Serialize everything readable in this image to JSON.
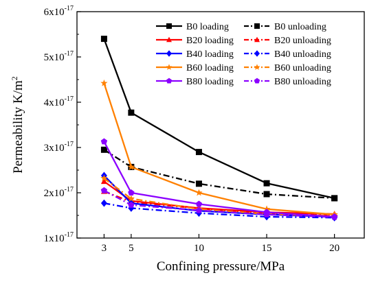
{
  "chart_data": {
    "type": "line",
    "xlabel": "Confining pressure/MPa",
    "ylabel": "Permeability K/m",
    "ylabel_superscript": "2",
    "x": [
      3,
      5,
      10,
      15,
      20
    ],
    "xticks": [
      "3",
      "5",
      "10",
      "15",
      "20"
    ],
    "xlim": [
      1.0,
      22.2
    ],
    "ylim": [
      1e-17,
      6e-17
    ],
    "yticks": [
      {
        "value": 1e-17,
        "mantissa": "1x10",
        "exp": "-17"
      },
      {
        "value": 2e-17,
        "mantissa": "2x10",
        "exp": "-17"
      },
      {
        "value": 3e-17,
        "mantissa": "3x10",
        "exp": "-17"
      },
      {
        "value": 4e-17,
        "mantissa": "4x10",
        "exp": "-17"
      },
      {
        "value": 5e-17,
        "mantissa": "5x10",
        "exp": "-17"
      },
      {
        "value": 6e-17,
        "mantissa": "6x10",
        "exp": "-17"
      }
    ],
    "grid": false,
    "legend_position": "top-right",
    "series": [
      {
        "name": "B0  loading",
        "color": "#000000",
        "dash": "solid",
        "marker": "square",
        "values": [
          5.4e-17,
          3.77e-17,
          2.9e-17,
          2.21e-17,
          1.88e-17
        ]
      },
      {
        "name": "B0  unloading",
        "color": "#000000",
        "dash": "dashdot",
        "marker": "square",
        "values": [
          2.95e-17,
          2.57e-17,
          2.2e-17,
          1.97e-17,
          1.88e-17
        ]
      },
      {
        "name": "B20 loading",
        "color": "#ff0000",
        "dash": "solid",
        "marker": "triangle",
        "values": [
          2.25e-17,
          1.82e-17,
          1.66e-17,
          1.57e-17,
          1.53e-17
        ]
      },
      {
        "name": "B20 unloading",
        "color": "#ff0000",
        "dash": "dashdot",
        "marker": "triangle",
        "values": [
          2.03e-17,
          1.8e-17,
          1.65e-17,
          1.55e-17,
          1.51e-17
        ]
      },
      {
        "name": "B40 loading",
        "color": "#0000ff",
        "dash": "solid",
        "marker": "diamond",
        "values": [
          2.38e-17,
          1.77e-17,
          1.6e-17,
          1.52e-17,
          1.47e-17
        ]
      },
      {
        "name": "B40 unloading",
        "color": "#0000ff",
        "dash": "dashdot",
        "marker": "diamond",
        "values": [
          1.77e-17,
          1.66e-17,
          1.55e-17,
          1.47e-17,
          1.45e-17
        ]
      },
      {
        "name": "B60 loading",
        "color": "#ff8000",
        "dash": "solid",
        "marker": "star",
        "values": [
          4.42e-17,
          2.57e-17,
          2e-17,
          1.64e-17,
          1.52e-17
        ]
      },
      {
        "name": "B60 unloading",
        "color": "#ff8000",
        "dash": "dashdot",
        "marker": "star",
        "values": [
          2.32e-17,
          1.87e-17,
          1.64e-17,
          1.53e-17,
          1.49e-17
        ]
      },
      {
        "name": "B80 loading",
        "color": "#8b00ff",
        "dash": "solid",
        "marker": "pentagon",
        "values": [
          3.13e-17,
          2e-17,
          1.75e-17,
          1.57e-17,
          1.47e-17
        ]
      },
      {
        "name": "B80 unloading",
        "color": "#8b00ff",
        "dash": "dashdot",
        "marker": "pentagon",
        "values": [
          2.05e-17,
          1.73e-17,
          1.61e-17,
          1.52e-17,
          1.46e-17
        ]
      }
    ]
  }
}
